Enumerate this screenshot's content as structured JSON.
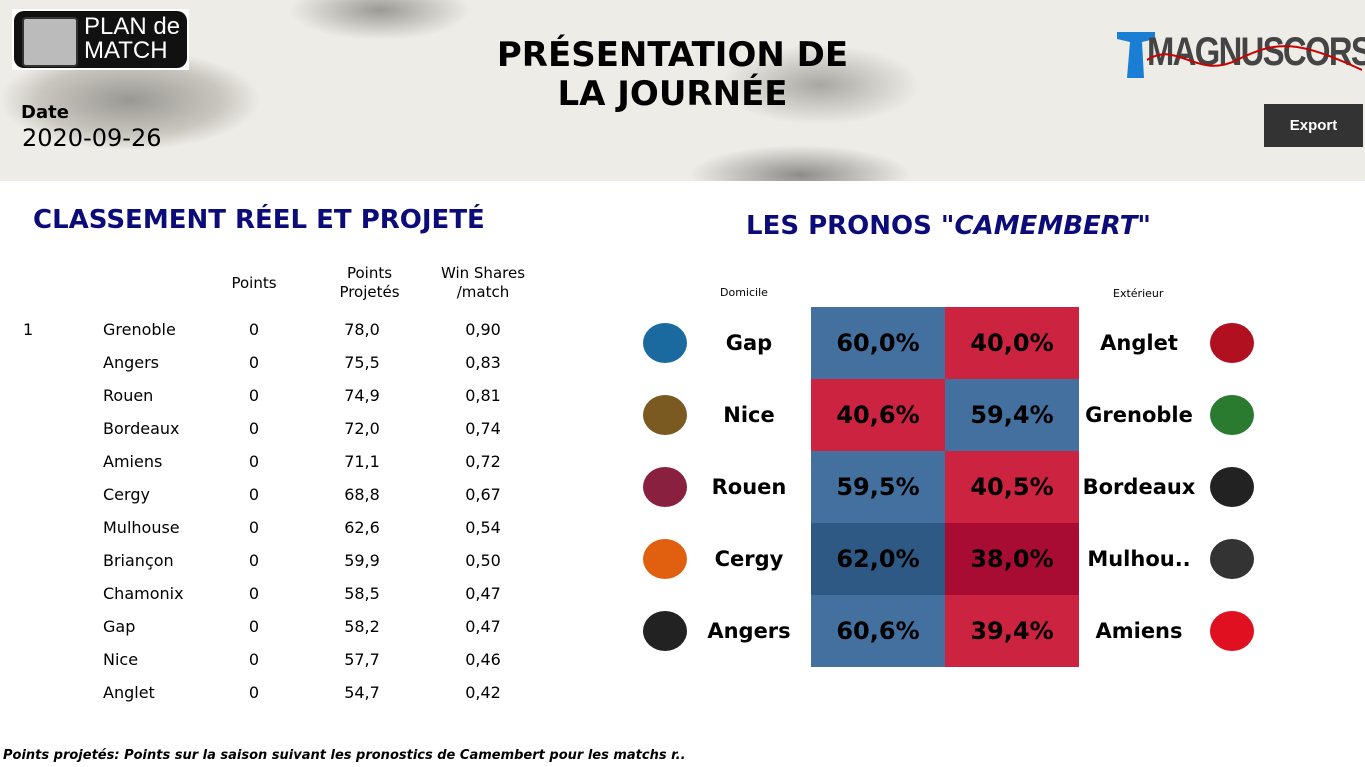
{
  "header": {
    "title": "PRÉSENTATION DE LA JOURNÉE",
    "date_label": "Date",
    "date_value": "2020-09-26",
    "logo_left": "PLAN de MATCH",
    "logo_right": "MAGNUSCORSI",
    "export_label": "Export"
  },
  "standings": {
    "title": "CLASSEMENT RÉEL ET PROJETÉ",
    "columns": [
      "Points",
      "Points Projetés",
      "Win Shares /match"
    ],
    "rows": [
      {
        "rank": "1",
        "team": "Grenoble",
        "points": "0",
        "projected": "78,0",
        "ws": "0,90"
      },
      {
        "rank": "",
        "team": "Angers",
        "points": "0",
        "projected": "75,5",
        "ws": "0,83"
      },
      {
        "rank": "",
        "team": "Rouen",
        "points": "0",
        "projected": "74,9",
        "ws": "0,81"
      },
      {
        "rank": "",
        "team": "Bordeaux",
        "points": "0",
        "projected": "72,0",
        "ws": "0,74"
      },
      {
        "rank": "",
        "team": "Amiens",
        "points": "0",
        "projected": "71,1",
        "ws": "0,72"
      },
      {
        "rank": "",
        "team": "Cergy",
        "points": "0",
        "projected": "68,8",
        "ws": "0,67"
      },
      {
        "rank": "",
        "team": "Mulhouse",
        "points": "0",
        "projected": "62,6",
        "ws": "0,54"
      },
      {
        "rank": "",
        "team": "Briançon",
        "points": "0",
        "projected": "59,9",
        "ws": "0,50"
      },
      {
        "rank": "",
        "team": "Chamonix",
        "points": "0",
        "projected": "58,5",
        "ws": "0,47"
      },
      {
        "rank": "",
        "team": "Gap",
        "points": "0",
        "projected": "58,2",
        "ws": "0,47"
      },
      {
        "rank": "",
        "team": "Nice",
        "points": "0",
        "projected": "57,7",
        "ws": "0,46"
      },
      {
        "rank": "",
        "team": "Anglet",
        "points": "0",
        "projected": "54,7",
        "ws": "0,42"
      }
    ]
  },
  "pronos": {
    "title_prefix": "LES PRONOS \"",
    "title_italic": "CAMEMBERT",
    "title_suffix": "\"",
    "home_label": "Domicile",
    "away_label": "Extérieur",
    "colors": {
      "blue": "#4470a0",
      "blue_dark": "#2e5985",
      "red": "#cc2340",
      "red_dark": "#a90c33"
    },
    "matches": [
      {
        "home": "Gap",
        "away": "Anglet",
        "home_pct": "60,0%",
        "away_pct": "40,0%",
        "home_logo": "Rapaces",
        "away_logo": "Hormadi",
        "shade": "normal"
      },
      {
        "home": "Nice",
        "away": "Grenoble",
        "home_pct": "40,6%",
        "away_pct": "59,4%",
        "home_logo": "Aigles",
        "away_logo": "Brûleurs de Loups",
        "shade": "normal"
      },
      {
        "home": "Rouen",
        "away": "Bordeaux",
        "home_pct": "59,5%",
        "away_pct": "40,5%",
        "home_logo": "Dragons",
        "away_logo": "Boxers",
        "shade": "normal"
      },
      {
        "home": "Cergy",
        "away": "Mulhou..",
        "home_pct": "62,0%",
        "away_pct": "38,0%",
        "home_logo": "Jokers",
        "away_logo": "Scorpions",
        "shade": "dark"
      },
      {
        "home": "Angers",
        "away": "Amiens",
        "home_pct": "60,6%",
        "away_pct": "39,4%",
        "home_logo": "Ducs",
        "away_logo": "Gothiques",
        "shade": "normal"
      }
    ]
  },
  "footer": "Points projetés: Points sur la saison suivant les pronostics de Camembert pour les matchs r.."
}
